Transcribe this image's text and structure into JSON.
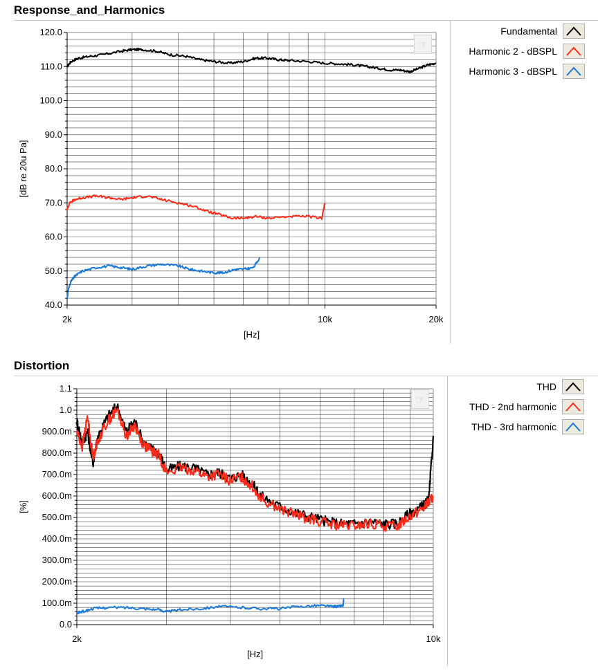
{
  "charts": [
    {
      "title": "Response_and_Harmonics",
      "xlabel": "[Hz]",
      "ylabel": "[dB re 20u Pa]",
      "legend": [
        {
          "label": "Fundamental",
          "color": "#000000"
        },
        {
          "label": "Harmonic 2 - dBSPL",
          "color": "#ff2a1a"
        },
        {
          "label": "Harmonic 3 - dBSPL",
          "color": "#1a78d6"
        }
      ]
    },
    {
      "title": "Distortion",
      "xlabel": "[Hz]",
      "ylabel": "[%]",
      "legend": [
        {
          "label": "THD",
          "color": "#000000"
        },
        {
          "label": "THD - 2nd harmonic",
          "color": "#ff2a1a"
        },
        {
          "label": "THD - 3rd harmonic",
          "color": "#1a78d6"
        }
      ]
    }
  ],
  "chart_data": [
    {
      "type": "line",
      "title": "Response_and_Harmonics",
      "xlabel": "[Hz]",
      "ylabel": "[dB re 20u Pa]",
      "x_scale": "log",
      "xlim": [
        2000,
        20000
      ],
      "ylim": [
        40,
        120
      ],
      "y_ticks": [
        40,
        50,
        60,
        70,
        80,
        90,
        100,
        110,
        120
      ],
      "y_tick_labels": [
        "40.0",
        "50.0",
        "60.0",
        "70.0",
        "80.0",
        "90.0",
        "100.0",
        "110.0",
        "120.0"
      ],
      "x_ticks": [
        2000,
        10000,
        20000
      ],
      "x_tick_labels": [
        "2k",
        "10k",
        "20k"
      ],
      "grid": true,
      "legend_position": "right",
      "series": [
        {
          "name": "Fundamental",
          "color": "#000000",
          "x": [
            2000,
            2050,
            2150,
            2300,
            2500,
            2800,
            3000,
            3200,
            3500,
            3800,
            4200,
            4600,
            5000,
            5500,
            6000,
            6500,
            7000,
            7500,
            8000,
            9000,
            10000,
            11000,
            12000,
            13000,
            14000,
            15000,
            16000,
            17000,
            18000,
            19000,
            20000
          ],
          "y": [
            110,
            111.5,
            112.5,
            113,
            113.5,
            114.5,
            115,
            115,
            114.5,
            113.5,
            113,
            112,
            111.5,
            111,
            111.5,
            112.5,
            112.5,
            112,
            111.8,
            111.5,
            111,
            110.8,
            110.5,
            110,
            109.5,
            109,
            109,
            108.5,
            109.5,
            110.5,
            111
          ]
        },
        {
          "name": "Harmonic 2 - dBSPL",
          "color": "#ff2a1a",
          "x": [
            2000,
            2030,
            2100,
            2200,
            2400,
            2600,
            2800,
            3000,
            3300,
            3600,
            4000,
            4400,
            4800,
            5200,
            5600,
            6000,
            6500,
            7000,
            8000,
            9000,
            9800,
            10000
          ],
          "y": [
            68,
            70,
            71,
            71.5,
            72,
            71.5,
            71,
            71.5,
            72,
            71,
            70,
            69,
            67.5,
            66.5,
            65.5,
            65.5,
            66,
            65.5,
            66,
            66,
            65.5,
            70
          ]
        },
        {
          "name": "Harmonic 3 - dBSPL",
          "color": "#1a78d6",
          "x": [
            2000,
            2020,
            2050,
            2100,
            2200,
            2400,
            2600,
            2800,
            3000,
            3300,
            3600,
            4000,
            4300,
            4600,
            5000,
            5300,
            5700,
            6000,
            6400,
            6660
          ],
          "y": [
            42,
            45,
            47,
            48.5,
            50,
            51,
            51.5,
            51,
            50.5,
            51.5,
            52,
            51.5,
            50.5,
            50,
            49.5,
            49.5,
            50.5,
            50.5,
            51,
            54
          ]
        }
      ]
    },
    {
      "type": "line",
      "title": "Distortion",
      "xlabel": "[Hz]",
      "ylabel": "[%]",
      "x_scale": "log",
      "xlim": [
        2000,
        10000
      ],
      "ylim": [
        0,
        1.1
      ],
      "y_ticks": [
        0,
        0.1,
        0.2,
        0.3,
        0.4,
        0.5,
        0.6,
        0.7,
        0.8,
        0.9,
        1.0,
        1.1
      ],
      "y_tick_labels": [
        "0.0",
        "100.0m",
        "200.0m",
        "300.0m",
        "400.0m",
        "500.0m",
        "600.0m",
        "700.0m",
        "800.0m",
        "900.0m",
        "1.0",
        "1.1"
      ],
      "x_ticks": [
        2000,
        10000
      ],
      "x_tick_labels": [
        "2k",
        "10k"
      ],
      "grid": true,
      "legend_position": "right",
      "series": [
        {
          "name": "THD",
          "color": "#000000",
          "x": [
            2000,
            2050,
            2100,
            2150,
            2200,
            2300,
            2400,
            2500,
            2600,
            2700,
            2800,
            2900,
            3000,
            3200,
            3400,
            3600,
            3800,
            4000,
            4200,
            4400,
            4600,
            5000,
            5400,
            5800,
            6200,
            6600,
            7000,
            7500,
            8000,
            8500,
            9000,
            9500,
            9800,
            10000
          ],
          "y": [
            0.95,
            0.85,
            0.9,
            0.75,
            0.88,
            0.97,
            1.02,
            0.9,
            0.95,
            0.85,
            0.82,
            0.8,
            0.72,
            0.74,
            0.73,
            0.7,
            0.71,
            0.68,
            0.7,
            0.66,
            0.6,
            0.55,
            0.52,
            0.5,
            0.48,
            0.47,
            0.47,
            0.48,
            0.47,
            0.47,
            0.52,
            0.55,
            0.58,
            0.88
          ]
        },
        {
          "name": "THD - 2nd harmonic",
          "color": "#ff2a1a",
          "x": [
            2000,
            2050,
            2100,
            2150,
            2200,
            2300,
            2400,
            2500,
            2600,
            2700,
            2800,
            2900,
            3000,
            3200,
            3400,
            3600,
            3800,
            4000,
            4200,
            4400,
            4600,
            5000,
            5400,
            5800,
            6200,
            6600,
            7000,
            7500,
            8000,
            8500,
            9000,
            9500,
            9800,
            10000
          ],
          "y": [
            0.9,
            0.83,
            0.97,
            0.78,
            0.86,
            0.95,
            1.0,
            0.88,
            0.93,
            0.84,
            0.81,
            0.79,
            0.71,
            0.73,
            0.72,
            0.69,
            0.7,
            0.67,
            0.69,
            0.65,
            0.59,
            0.54,
            0.51,
            0.49,
            0.47,
            0.46,
            0.46,
            0.47,
            0.46,
            0.46,
            0.51,
            0.54,
            0.57,
            0.6
          ]
        },
        {
          "name": "THD - 3rd harmonic",
          "color": "#1a78d6",
          "x": [
            2000,
            2050,
            2150,
            2300,
            2500,
            2700,
            2900,
            3000,
            3200,
            3500,
            3800,
            4200,
            4600,
            5000,
            5500,
            6000,
            6300,
            6500,
            6660,
            6670
          ],
          "y": [
            0.055,
            0.06,
            0.075,
            0.08,
            0.08,
            0.075,
            0.07,
            0.06,
            0.07,
            0.075,
            0.085,
            0.08,
            0.075,
            0.075,
            0.085,
            0.09,
            0.085,
            0.085,
            0.09,
            0.12
          ]
        }
      ]
    }
  ]
}
